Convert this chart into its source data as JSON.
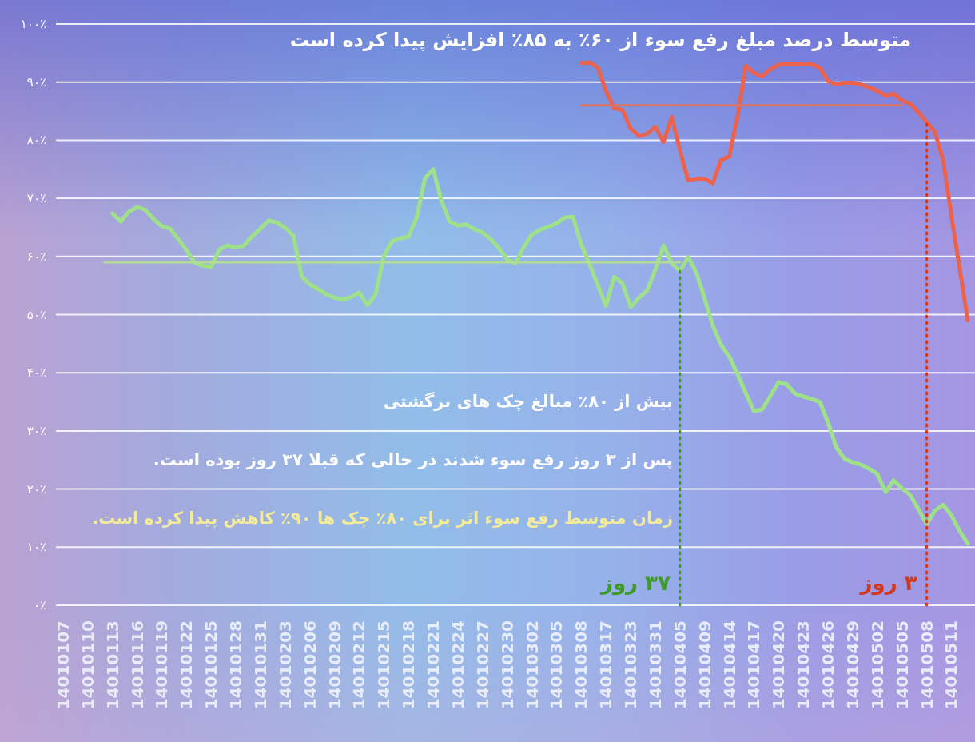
{
  "chart_data": {
    "type": "line",
    "title": "متوسط درصد مبلغ رفع سوء از ۶۰٪ به ۸۵٪ افزایش پیدا کرده است",
    "categories": [
      "14010107",
      null,
      null,
      "14010110",
      null,
      null,
      "14010113",
      null,
      null,
      "14010116",
      null,
      null,
      "14010119",
      null,
      null,
      "14010122",
      null,
      null,
      "14010125",
      null,
      null,
      "14010128",
      null,
      null,
      "14010131",
      null,
      null,
      "14010203",
      null,
      null,
      "14010206",
      null,
      null,
      "14010209",
      null,
      null,
      "14010212",
      null,
      null,
      "14010215",
      null,
      null,
      "14010218",
      null,
      null,
      "14010221",
      null,
      null,
      "14010224",
      null,
      null,
      "14010227",
      null,
      null,
      "14010230",
      null,
      null,
      "14010302",
      null,
      null,
      "14010305",
      null,
      null,
      "14010308",
      null,
      null,
      "14010317",
      null,
      null,
      "14010323",
      null,
      null,
      "14010331",
      null,
      null,
      "14010405",
      null,
      null,
      "14010409",
      null,
      null,
      "14010414",
      null,
      null,
      "14010417",
      null,
      null,
      "14010420",
      null,
      null,
      "14010423",
      null,
      null,
      "14010426",
      null,
      null,
      "14010429",
      null,
      null,
      "14010502",
      null,
      null,
      "14010505",
      null,
      null,
      "14010508",
      null,
      null,
      "14010511",
      null,
      null
    ],
    "series": [
      {
        "color": "#9fe08a",
        "values": [
          null,
          null,
          null,
          null,
          null,
          null,
          67.4,
          66.0,
          67.7,
          68.5,
          68.0,
          66.4,
          65.2,
          64.8,
          63.0,
          61.1,
          58.9,
          58.4,
          58.2,
          61.2,
          61.9,
          61.5,
          61.9,
          63.5,
          64.8,
          66.2,
          65.8,
          64.9,
          63.6,
          56.6,
          55.2,
          54.4,
          53.5,
          52.9,
          52.6,
          53.0,
          53.8,
          51.6,
          53.5,
          60.1,
          62.6,
          63.1,
          63.4,
          66.7,
          73.5,
          75.0,
          69.5,
          66.0,
          65.3,
          65.5,
          64.7,
          64.1,
          63.0,
          61.4,
          59.5,
          58.8,
          61.6,
          63.8,
          64.6,
          65.1,
          65.7,
          66.7,
          66.8,
          62.0,
          58.7,
          55.1,
          51.5,
          56.5,
          55.4,
          51.3,
          52.9,
          54.1,
          57.7,
          61.9,
          58.8,
          57.5,
          59.9,
          57.2,
          52.8,
          48.1,
          44.8,
          42.8,
          39.8,
          36.5,
          33.4,
          33.7,
          36.0,
          38.4,
          38.0,
          36.4,
          35.9,
          35.5,
          35.0,
          31.5,
          27.2,
          25.2,
          24.6,
          24.2,
          23.5,
          22.6,
          19.5,
          21.5,
          20.1,
          19.0,
          16.5,
          14.0,
          16.3,
          17.3,
          15.5,
          12.8,
          10.6
        ]
      },
      {
        "color": "#ec634d",
        "values": [
          null,
          null,
          null,
          null,
          null,
          null,
          null,
          null,
          null,
          null,
          null,
          null,
          null,
          null,
          null,
          null,
          null,
          null,
          null,
          null,
          null,
          null,
          null,
          null,
          null,
          null,
          null,
          null,
          null,
          null,
          null,
          null,
          null,
          null,
          null,
          null,
          null,
          null,
          null,
          null,
          null,
          null,
          null,
          null,
          null,
          null,
          null,
          null,
          null,
          null,
          null,
          null,
          null,
          null,
          null,
          null,
          null,
          null,
          null,
          null,
          null,
          null,
          null,
          93.3,
          93.4,
          92.5,
          88.5,
          85.5,
          85.2,
          82.0,
          80.8,
          81.1,
          82.3,
          79.7,
          84.0,
          78.3,
          73.1,
          73.4,
          73.4,
          72.6,
          76.6,
          77.2,
          84.0,
          92.8,
          91.6,
          91.0,
          92.2,
          93.0,
          93.1,
          93.1,
          93.1,
          93.1,
          92.5,
          90.2,
          89.6,
          89.9,
          89.9,
          89.6,
          89.1,
          88.5,
          87.7,
          88.0,
          86.8,
          86.3,
          84.8,
          83.1,
          81.4,
          76.6,
          67.0,
          58.0,
          49.0
        ]
      },
      {
        "color": "#b3dc96",
        "values": [
          null,
          null,
          null,
          null,
          null,
          59,
          59,
          59,
          59,
          59,
          59,
          59,
          59,
          59,
          59,
          59,
          59,
          59,
          59,
          59,
          59,
          59,
          59,
          59,
          59,
          59,
          59,
          59,
          59,
          59,
          59,
          59,
          59,
          59,
          59,
          59,
          59,
          59,
          59,
          59,
          59,
          59,
          59,
          59,
          59,
          59,
          59,
          59,
          59,
          59,
          59,
          59,
          59,
          59,
          59,
          59,
          59,
          59,
          59,
          59,
          59,
          59,
          59,
          59,
          59,
          59,
          59,
          59,
          59,
          59,
          59,
          59,
          59,
          59,
          59,
          59,
          null,
          null,
          null,
          null,
          null,
          null,
          null,
          null,
          null,
          null,
          null,
          null,
          null,
          null,
          null,
          null,
          null,
          null,
          null,
          null,
          null,
          null,
          null,
          null,
          null,
          null,
          null,
          null,
          null,
          null,
          null,
          null,
          null,
          null,
          null
        ]
      },
      {
        "color": "#e0735e",
        "values": [
          null,
          null,
          null,
          null,
          null,
          null,
          null,
          null,
          null,
          null,
          null,
          null,
          null,
          null,
          null,
          null,
          null,
          null,
          null,
          null,
          null,
          null,
          null,
          null,
          null,
          null,
          null,
          null,
          null,
          null,
          null,
          null,
          null,
          null,
          null,
          null,
          null,
          null,
          null,
          null,
          null,
          null,
          null,
          null,
          null,
          null,
          null,
          null,
          null,
          null,
          null,
          null,
          null,
          null,
          null,
          null,
          null,
          null,
          null,
          null,
          null,
          null,
          null,
          86,
          86,
          86,
          86,
          86,
          86,
          86,
          86,
          86,
          86,
          86,
          86,
          86,
          86,
          86,
          86,
          86,
          86,
          86,
          86,
          86,
          86,
          86,
          86,
          86,
          86,
          86,
          86,
          86,
          86,
          86,
          86,
          86,
          86,
          86,
          86,
          86,
          86,
          86,
          86,
          null,
          null,
          null,
          null,
          null,
          null,
          null,
          null
        ]
      }
    ],
    "ylim": [
      0,
      100
    ],
    "yticks": [
      {
        "value": 0,
        "label": "۰٪"
      },
      {
        "value": 10,
        "label": "۱۰٪"
      },
      {
        "value": 20,
        "label": "۲۰٪"
      },
      {
        "value": 30,
        "label": "۳۰٪"
      },
      {
        "value": 40,
        "label": "۴۰٪"
      },
      {
        "value": 50,
        "label": "۵۰٪"
      },
      {
        "value": 60,
        "label": "۶۰٪"
      },
      {
        "value": 70,
        "label": "۷۰٪"
      },
      {
        "value": 80,
        "label": "۸۰٪"
      },
      {
        "value": 90,
        "label": "۹۰٪"
      },
      {
        "value": 100,
        "label": "۱۰۰٪"
      }
    ],
    "grid": "y",
    "line_style": "solid",
    "ref_lines": [
      {
        "axis": "x",
        "value": "14010405",
        "label": "۳۷ روز",
        "color": "#3f9a2a",
        "line_style": "dotted"
      },
      {
        "axis": "x",
        "value": "14010508",
        "label": "۳ روز",
        "color": "#d2381c",
        "line_style": "dotted"
      }
    ],
    "annotations": [
      "بیش از ۸۰٪ مبالغ چک های برگشتی",
      "پس از ۳ روز رفع سوء شدند در حالی که قبلا ۳۷ روز بوده است.",
      "زمان متوسط رفع سوء اثر برای ۸۰٪ چک ها ۹۰٪ کاهش پیدا کرده است."
    ]
  }
}
